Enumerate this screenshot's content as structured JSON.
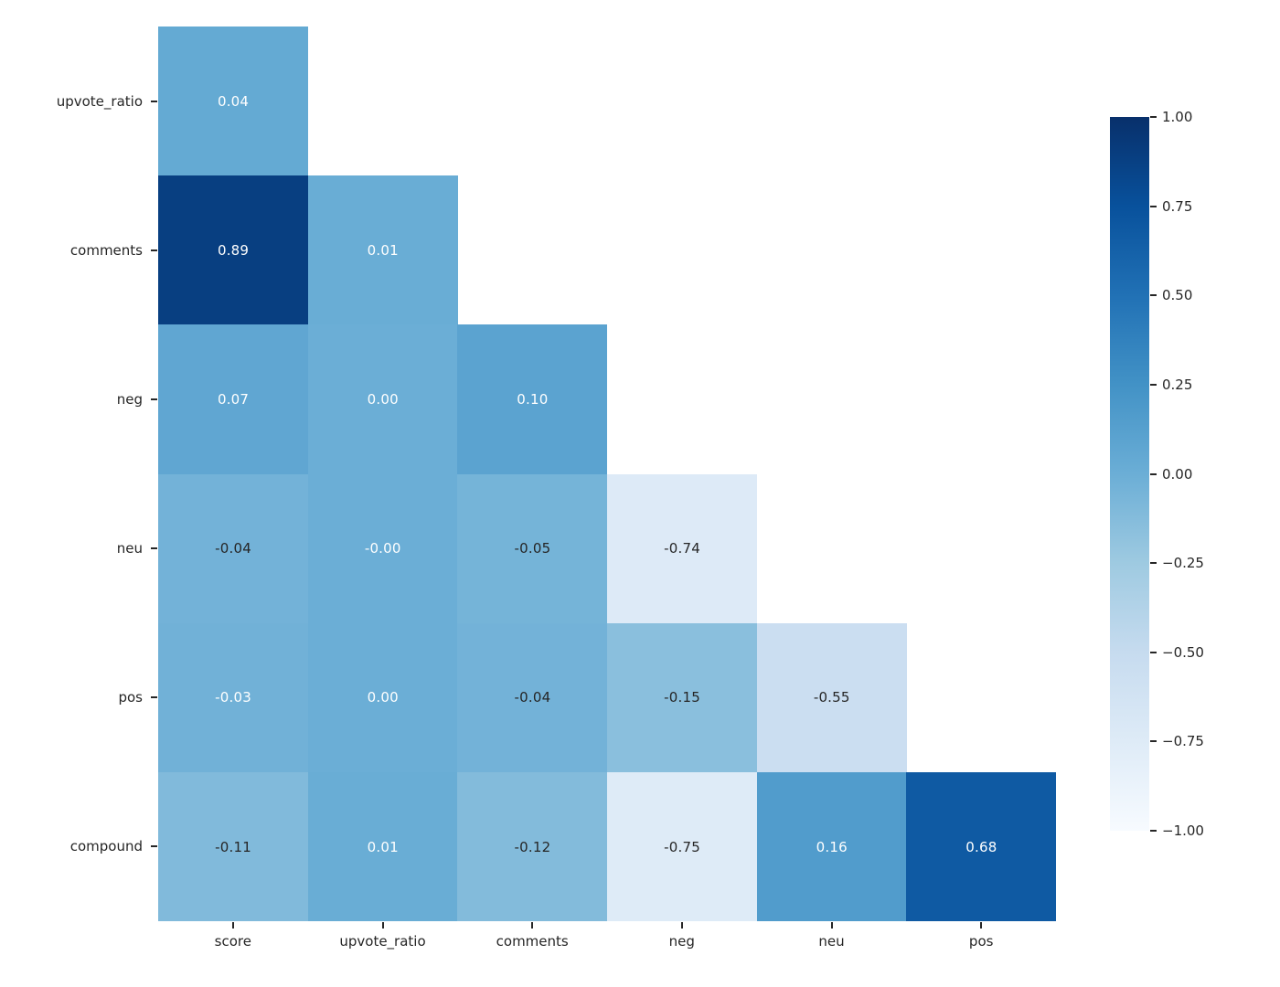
{
  "figure": {
    "background": "#ffffff",
    "text_color": "#262626",
    "annotation_white": "#ffffff",
    "annotation_dark": "#262626"
  },
  "chart_data": {
    "type": "heatmap",
    "title": "",
    "subtitle": "",
    "xlabel": "",
    "ylabel": "",
    "layout": "lower-triangle correlation matrix, colormap Blues, gridlines off, colorbar right",
    "rows": [
      "upvote_ratio",
      "comments",
      "neg",
      "neu",
      "pos",
      "compound"
    ],
    "cols": [
      "score",
      "upvote_ratio",
      "comments",
      "neg",
      "neu",
      "pos"
    ],
    "vmin": -1,
    "vmax": 1,
    "values": [
      [
        0.04
      ],
      [
        0.89,
        0.01
      ],
      [
        0.07,
        0.0,
        0.1
      ],
      [
        -0.04,
        -0.0,
        -0.05,
        -0.74
      ],
      [
        -0.03,
        0.0,
        -0.04,
        -0.15,
        -0.55
      ],
      [
        -0.11,
        0.01,
        -0.12,
        -0.75,
        0.16,
        0.68
      ]
    ],
    "cells": [
      [
        {
          "v": "0.04",
          "bg": "#64aad3",
          "tc": "w"
        }
      ],
      [
        {
          "v": "0.89",
          "bg": "#083f81",
          "tc": "w"
        },
        {
          "v": "0.01",
          "bg": "#69add5",
          "tc": "w"
        }
      ],
      [
        {
          "v": "0.07",
          "bg": "#60a6d2",
          "tc": "w"
        },
        {
          "v": "0.00",
          "bg": "#6baed6",
          "tc": "w"
        },
        {
          "v": "0.10",
          "bg": "#5ba3d0",
          "tc": "w"
        }
      ],
      [
        {
          "v": "-0.04",
          "bg": "#73b2d8",
          "tc": "d"
        },
        {
          "v": "-0.00",
          "bg": "#6baed6",
          "tc": "w"
        },
        {
          "v": "-0.05",
          "bg": "#75b4d8",
          "tc": "d"
        },
        {
          "v": "-0.74",
          "bg": "#ddeaf7",
          "tc": "d"
        }
      ],
      [
        {
          "v": "-0.03",
          "bg": "#71b1d7",
          "tc": "w"
        },
        {
          "v": "0.00",
          "bg": "#6baed6",
          "tc": "w"
        },
        {
          "v": "-0.04",
          "bg": "#73b2d8",
          "tc": "d"
        },
        {
          "v": "-0.15",
          "bg": "#8abfdd",
          "tc": "d"
        },
        {
          "v": "-0.55",
          "bg": "#cbdef1",
          "tc": "d"
        }
      ],
      [
        {
          "v": "-0.11",
          "bg": "#81badb",
          "tc": "d"
        },
        {
          "v": "0.01",
          "bg": "#69add5",
          "tc": "w"
        },
        {
          "v": "-0.12",
          "bg": "#83bbdb",
          "tc": "d"
        },
        {
          "v": "-0.75",
          "bg": "#deebf7",
          "tc": "d"
        },
        {
          "v": "0.16",
          "bg": "#519ccc",
          "tc": "w"
        },
        {
          "v": "0.68",
          "bg": "#0f5aa3",
          "tc": "w"
        }
      ]
    ],
    "colorbar": {
      "ticks": [
        "1.00",
        "0.75",
        "0.50",
        "0.25",
        "0.00",
        "−0.25",
        "−0.50",
        "−0.75",
        "−1.00"
      ],
      "gradient_top_to_bottom": [
        "#08306b",
        "#08519c",
        "#2171b5",
        "#4292c6",
        "#6baed6",
        "#9ecae1",
        "#c6dbef",
        "#deebf7",
        "#f7fbff"
      ]
    }
  }
}
